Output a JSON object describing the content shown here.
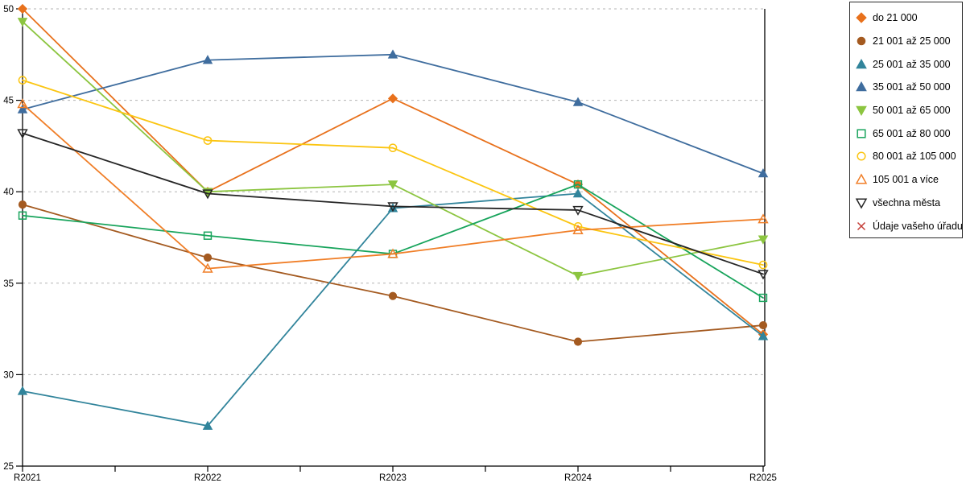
{
  "chart_data": {
    "type": "line",
    "title": "",
    "xlabel": "",
    "ylabel": "",
    "x_categories": [
      "R2021",
      "R2022",
      "R2023",
      "R2024",
      "R2025"
    ],
    "y_axis": {
      "min": 25,
      "max": 50,
      "tick_step": 5,
      "tick_labels": [
        "25",
        "30",
        "35",
        "40",
        "45",
        "50"
      ]
    },
    "grid": "horizontal-dashed",
    "legend_position": "right",
    "series": [
      {
        "name": "do 21 000",
        "color": "#E8711C",
        "marker": "diamond",
        "fill": "filled",
        "values": [
          50.0,
          40.0,
          45.1,
          40.4,
          32.2
        ]
      },
      {
        "name": "21 001 až 25 000",
        "color": "#A45A20",
        "marker": "circle",
        "fill": "filled",
        "values": [
          39.3,
          36.4,
          34.3,
          31.8,
          32.7
        ]
      },
      {
        "name": "25 001 až 35 000",
        "color": "#31849B",
        "marker": "triangle-up",
        "fill": "filled",
        "values": [
          29.1,
          27.2,
          39.1,
          39.9,
          32.1
        ]
      },
      {
        "name": "35 001 až 50 000",
        "color": "#3F6D9E",
        "marker": "triangle-up",
        "fill": "filled",
        "values": [
          44.5,
          47.2,
          47.5,
          44.9,
          41.0
        ]
      },
      {
        "name": "50 001 až 65 000",
        "color": "#8CC540",
        "marker": "triangle-down",
        "fill": "filled",
        "values": [
          49.3,
          40.0,
          40.4,
          35.4,
          37.4
        ]
      },
      {
        "name": "65 001 až 80 000",
        "color": "#18A45C",
        "marker": "square",
        "fill": "open",
        "values": [
          38.7,
          37.6,
          36.6,
          40.4,
          34.2
        ]
      },
      {
        "name": "80 001 až 105 000",
        "color": "#FBC511",
        "marker": "circle",
        "fill": "open",
        "values": [
          46.1,
          42.8,
          42.4,
          38.1,
          36.0
        ]
      },
      {
        "name": "105 001 a více",
        "color": "#F07E27",
        "marker": "triangle-up",
        "fill": "open",
        "values": [
          44.8,
          35.8,
          36.6,
          37.9,
          38.5
        ]
      },
      {
        "name": "všechna města",
        "color": "#262626",
        "marker": "triangle-down",
        "fill": "open",
        "values": [
          43.2,
          39.9,
          39.2,
          39.0,
          35.5
        ]
      },
      {
        "name": "Údaje vašeho úřadu",
        "color": "#C43C35",
        "marker": "x",
        "fill": "open",
        "values": []
      }
    ]
  }
}
